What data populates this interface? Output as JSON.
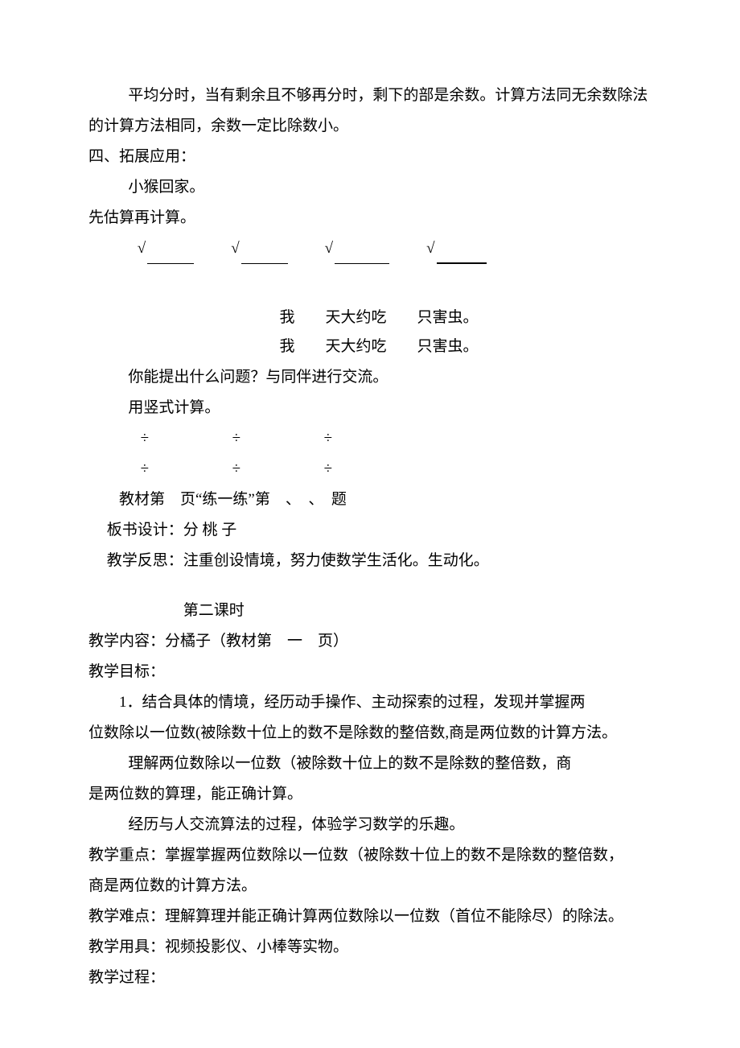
{
  "para1": "平均分时，当有剩余且不够再分时，剩下的部是余数。计算方法同无余数除法的计算方法相同，余数一定比除数小。",
  "heading4": "四、拓展应用：",
  "monkey": "小猴回家。",
  "estimate": "先估算再计算。",
  "check": "√",
  "eat1": "我　　天大约吃　　只害虫。",
  "eat2": "我　　天大约吃　　只害虫。",
  "q_line": "你能提出什么问题？与同伴进行交流。",
  "vertical": "用竖式计算。",
  "div": "÷",
  "practice": "教材第　页“练一练”第　、　、　题",
  "board": "板书设计：分 桃 子",
  "reflect": "教学反思：注重创设情境，努力使数学生活化。生动化。",
  "lesson2": "第二课时",
  "content": "教学内容：分橘子（教材第　一　页）",
  "goal_h": "教学目标：",
  "goal1a": "1．结合具体的情境，经历动手操作、主动探索的过程，发现并掌握两",
  "goal1b": "位数除以一位数(被除数十位上的数不是除数的整倍数,商是两位数的计算方法。",
  "goal2a": "理解两位数除以一位数（被除数十位上的数不是除数的整倍数，商",
  "goal2b": "是两位数的算理，能正确计算。",
  "goal3": "经历与人交流算法的过程，体验学习数学的乐趣。",
  "focus1": "教学重点：掌握掌握两位数除以一位数（被除数十位上的数不是除数的整倍数，",
  "focus2": "商是两位数的计算方法。",
  "difficult": "教学难点：理解算理并能正确计算两位数除以一位数（首位不能除尽）的除法。",
  "tools": "教学用具：视频投影仪、小棒等实物。",
  "process": "教学过程："
}
